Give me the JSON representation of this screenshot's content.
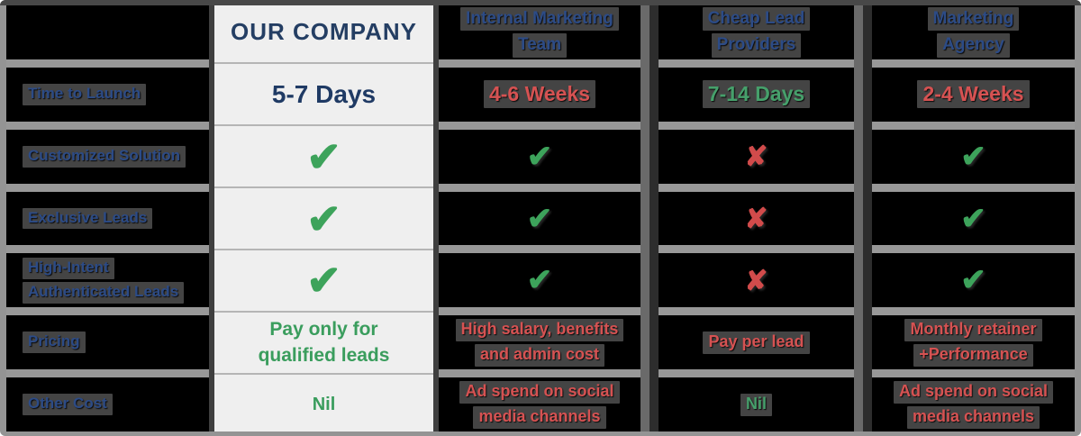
{
  "chart_data": {
    "type": "table",
    "title": "Lead generation options comparison",
    "columns": [
      "",
      "OUR COMPANY",
      "Internal Marketing Team",
      "Cheap Lead Providers",
      "Marketing Agency"
    ],
    "rows": [
      [
        "Time to Launch",
        "5-7 Days",
        "4-6 Weeks",
        "7-14 Days",
        "2-4 Weeks"
      ],
      [
        "Customized Solution",
        "yes",
        "yes",
        "no",
        "yes"
      ],
      [
        "Exclusive Leads",
        "yes",
        "yes",
        "no",
        "yes"
      ],
      [
        "High-Intent Authenticated Leads",
        "yes",
        "yes",
        "no",
        "yes"
      ],
      [
        "Pricing",
        "Pay only for qualified leads",
        "High salary, benefits and admin cost",
        "Pay per lead",
        "Monthly retainer +Performance"
      ],
      [
        "Other Cost",
        "Nil",
        "Ad spend on social media channels",
        "Nil",
        "Ad spend on social media channels"
      ]
    ]
  },
  "table": {
    "icons": {
      "check": "✔",
      "cross": "✘"
    },
    "colors": {
      "cell_background_dark": "#000000",
      "highlight_column_background": "#efefef",
      "grid_gray": "#949494",
      "navy_light_column": "#1f3a64",
      "navy_dark_cells": "#2c4b86",
      "negative_red": "#d65252",
      "positive_green_dark": "#46a06b",
      "positive_green_light": "#3a9d5d",
      "check_green": "#3da35b",
      "cross_red": "#d14b4b"
    },
    "header": {
      "columns": [
        {
          "id": "our-company",
          "lines": [
            "OUR COMPANY"
          ]
        },
        {
          "id": "internal-marketing-team",
          "lines": [
            "Internal Marketing",
            "Team"
          ]
        },
        {
          "id": "cheap-lead-providers",
          "lines": [
            "Cheap Lead",
            "Providers"
          ]
        },
        {
          "id": "marketing-agency",
          "lines": [
            "Marketing",
            "Agency"
          ]
        }
      ]
    },
    "rows": [
      {
        "id": "time-to-launch",
        "label_lines": [
          "Time to Launch"
        ],
        "cells": [
          {
            "type": "text",
            "style": "navy",
            "size": "xl",
            "lines": [
              "5-7 Days"
            ]
          },
          {
            "type": "text",
            "style": "red",
            "size": "lg",
            "lines": [
              "4-6 Weeks"
            ]
          },
          {
            "type": "text",
            "style": "green",
            "size": "lg",
            "lines": [
              "7-14 Days"
            ]
          },
          {
            "type": "text",
            "style": "red",
            "size": "lg",
            "lines": [
              "2-4 Weeks"
            ]
          }
        ]
      },
      {
        "id": "customized-solution",
        "label_lines": [
          "Customized Solution"
        ],
        "cells": [
          {
            "type": "check"
          },
          {
            "type": "check"
          },
          {
            "type": "cross"
          },
          {
            "type": "check"
          }
        ]
      },
      {
        "id": "exclusive-leads",
        "label_lines": [
          "Exclusive Leads"
        ],
        "cells": [
          {
            "type": "check"
          },
          {
            "type": "check"
          },
          {
            "type": "cross"
          },
          {
            "type": "check"
          }
        ]
      },
      {
        "id": "high-intent-authenticated-leads",
        "label_lines": [
          "High-Intent",
          "Authenticated Leads"
        ],
        "cells": [
          {
            "type": "check"
          },
          {
            "type": "check"
          },
          {
            "type": "cross"
          },
          {
            "type": "check"
          }
        ]
      },
      {
        "id": "pricing",
        "label_lines": [
          "Pricing"
        ],
        "cells": [
          {
            "type": "text",
            "style": "green",
            "size": "lg",
            "lines": [
              "Pay only for",
              "qualified leads"
            ]
          },
          {
            "type": "text",
            "style": "red",
            "size": "md",
            "lines": [
              "High salary, benefits",
              "and admin cost"
            ]
          },
          {
            "type": "text",
            "style": "red",
            "size": "md",
            "lines": [
              "Pay per lead"
            ]
          },
          {
            "type": "text",
            "style": "red",
            "size": "md",
            "lines": [
              "Monthly retainer",
              "+Performance"
            ]
          }
        ]
      },
      {
        "id": "other-cost",
        "label_lines": [
          "Other Cost"
        ],
        "cells": [
          {
            "type": "text",
            "style": "green",
            "size": "md",
            "lines": [
              "Nil"
            ]
          },
          {
            "type": "text",
            "style": "red",
            "size": "md",
            "lines": [
              "Ad spend on social",
              "media channels"
            ]
          },
          {
            "type": "text",
            "style": "green",
            "size": "md",
            "lines": [
              "Nil"
            ]
          },
          {
            "type": "text",
            "style": "red",
            "size": "md",
            "lines": [
              "Ad spend on social",
              "media channels"
            ]
          }
        ]
      }
    ]
  }
}
